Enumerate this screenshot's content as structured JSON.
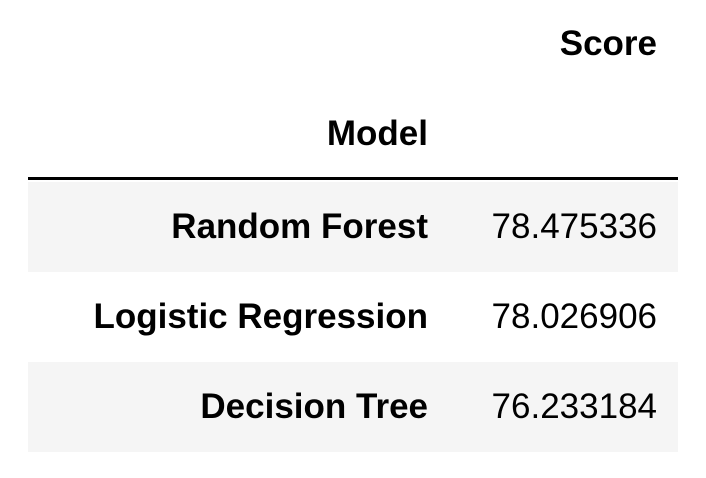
{
  "table": {
    "column_header": "Score",
    "index_header": "Model",
    "rows": [
      {
        "model": "Random Forest",
        "score": "78.475336"
      },
      {
        "model": "Logistic Regression",
        "score": "78.026906"
      },
      {
        "model": "Decision Tree",
        "score": "76.233184"
      }
    ]
  },
  "colors": {
    "stripe": "#f5f5f5",
    "rule": "#000000"
  }
}
